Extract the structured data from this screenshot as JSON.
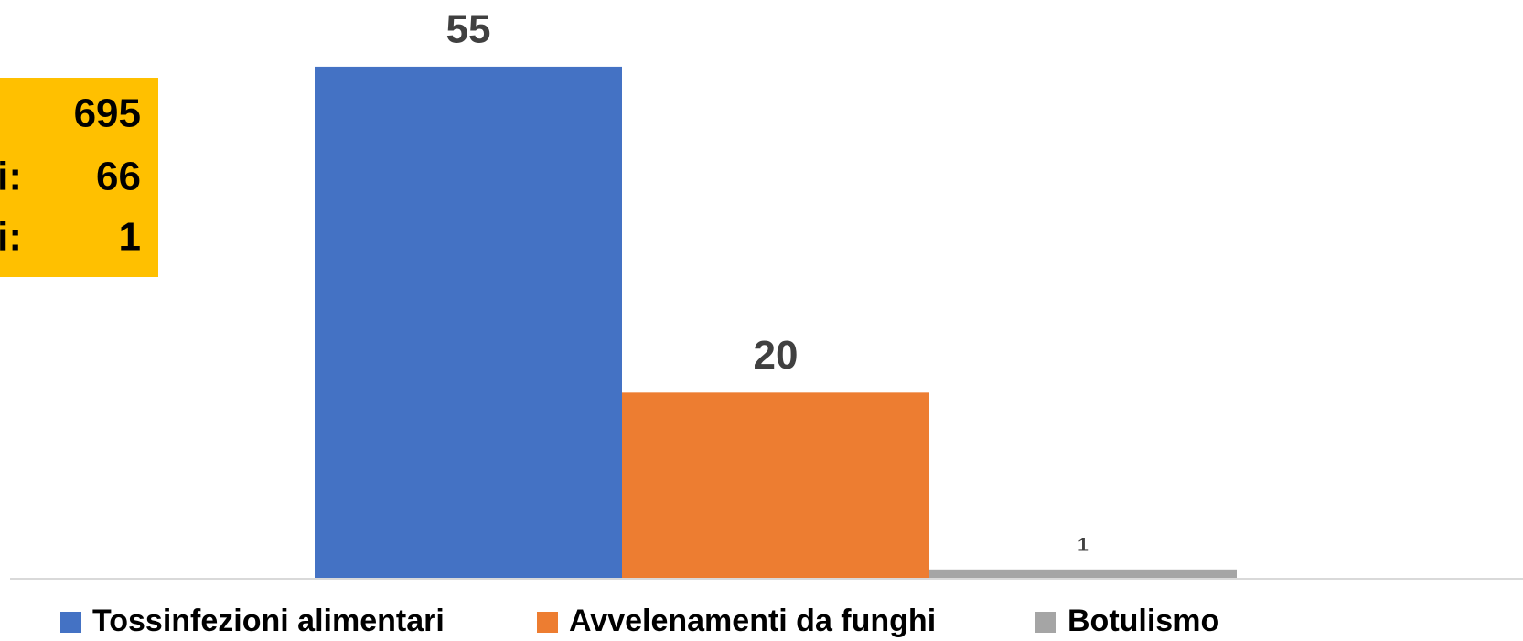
{
  "chart_data": {
    "type": "bar",
    "series": [
      {
        "name": "Tossinfezioni alimentari",
        "color": "#4472c4",
        "values": [
          55
        ]
      },
      {
        "name": "Avvelenamenti da funghi",
        "color": "#ed7d31",
        "values": [
          20
        ]
      },
      {
        "name": "Botulismo",
        "color": "#a5a5a5",
        "values": [
          1
        ]
      }
    ],
    "ylim": [
      0,
      60
    ]
  },
  "info_box": {
    "color": "#ffc000",
    "rows": [
      {
        "value": 695
      },
      {
        "label": "i:",
        "value": 66
      },
      {
        "label": "i:",
        "value": 1
      }
    ]
  }
}
